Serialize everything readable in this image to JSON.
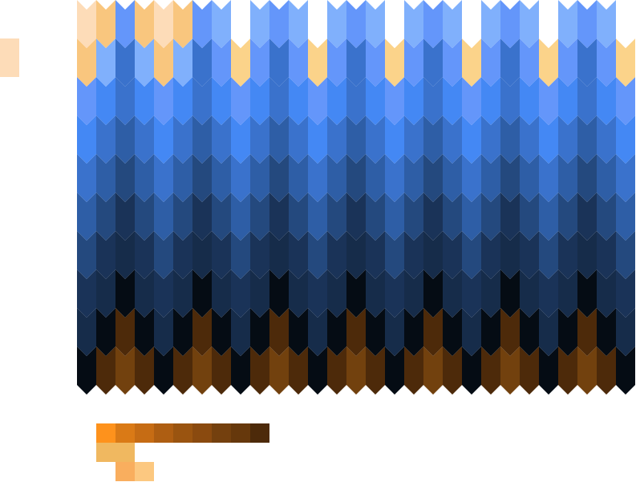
{
  "ramp": [
    "#fddcb8",
    "#fbd38a",
    "#f9c67e",
    "#f0b45e",
    "#80b0fc",
    "#6e9ffb",
    "#6496fa",
    "#4488f4",
    "#3a72cc",
    "#2e5ea6",
    "#24497e",
    "#1a3358",
    "#162c4a",
    "#050c14",
    "#4d2a0a",
    "#72410e"
  ],
  "side_tile_color": "#fddcb8",
  "swatches_row1": [
    "#fe921c",
    "#da7a16",
    "#c66c14",
    "#ae5e12",
    "#9a5410",
    "#8a4a0f",
    "#74400e",
    "#66380c",
    "#4d2a0a"
  ],
  "swatches_row2": [
    "#f0b860",
    "#f0b860"
  ],
  "swatches_row3": [
    "#f9ae5e",
    "#fcc880"
  ]
}
